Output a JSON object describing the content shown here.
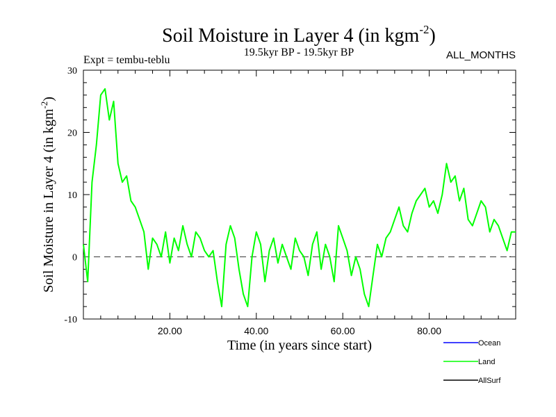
{
  "chart_data": {
    "type": "line",
    "title_main": "Soil Moisture in Layer 4 (in kgm",
    "title_sup": "-2",
    "title_close": ")",
    "expt": "Expt = tembu-teblu",
    "period": "19.5kyr BP - 19.5kyr BP",
    "months": "ALL_MONTHS",
    "xlabel": "Time (in years since start)",
    "ylabel_main": "Soil Moisture in Layer 4 (in kgm",
    "ylabel_sup": "-2",
    "ylabel_close": ")",
    "xlim": [
      0,
      100
    ],
    "ylim": [
      -10,
      30
    ],
    "xticks": [
      20,
      40,
      60,
      80
    ],
    "xtick_labels": [
      "20.00",
      "40.00",
      "60.00",
      "80.00"
    ],
    "yticks": [
      -10,
      0,
      10,
      20,
      30
    ],
    "ytick_labels": [
      "-10",
      "0",
      "10",
      "20",
      "30"
    ],
    "zero_line": 0,
    "legend": [
      {
        "name": "Ocean",
        "color": "#0000ff"
      },
      {
        "name": "Land",
        "color": "#00ff00"
      },
      {
        "name": "AllSurf",
        "color": "#000000"
      }
    ],
    "series": [
      {
        "name": "Land",
        "color": "#00ff00",
        "x": [
          0,
          1,
          2,
          3,
          4,
          5,
          6,
          7,
          8,
          9,
          10,
          11,
          12,
          13,
          14,
          15,
          16,
          17,
          18,
          19,
          20,
          21,
          22,
          23,
          24,
          25,
          26,
          27,
          28,
          29,
          30,
          31,
          32,
          33,
          34,
          35,
          36,
          37,
          38,
          39,
          40,
          41,
          42,
          43,
          44,
          45,
          46,
          47,
          48,
          49,
          50,
          51,
          52,
          53,
          54,
          55,
          56,
          57,
          58,
          59,
          60,
          61,
          62,
          63,
          64,
          65,
          66,
          67,
          68,
          69,
          70,
          71,
          72,
          73,
          74,
          75,
          76,
          77,
          78,
          79,
          80,
          81,
          82,
          83,
          84,
          85,
          86,
          87,
          88,
          89,
          90,
          91,
          92,
          93,
          94,
          95,
          96,
          97,
          98,
          99,
          100
        ],
        "values": [
          2,
          -4,
          12,
          18,
          26,
          27,
          22,
          25,
          15,
          12,
          13,
          9,
          8,
          6,
          4,
          -2,
          3,
          2,
          0,
          4,
          -1,
          3,
          1,
          5,
          2,
          0,
          4,
          3,
          1,
          0,
          1,
          -4,
          -8,
          2,
          5,
          3,
          -2,
          -6,
          -8,
          0,
          4,
          2,
          -4,
          1,
          3,
          -1,
          2,
          0,
          -2,
          3,
          1,
          0,
          -3,
          2,
          4,
          -2,
          2,
          0,
          -4,
          5,
          3,
          1,
          -3,
          0,
          -2,
          -6,
          -8,
          -3,
          2,
          0,
          3,
          4,
          6,
          8,
          5,
          4,
          7,
          9,
          10,
          11,
          8,
          9,
          7,
          10,
          15,
          12,
          13,
          9,
          11,
          6,
          5,
          7,
          9,
          8,
          4,
          6,
          5,
          3,
          1,
          4,
          4
        ]
      }
    ]
  }
}
